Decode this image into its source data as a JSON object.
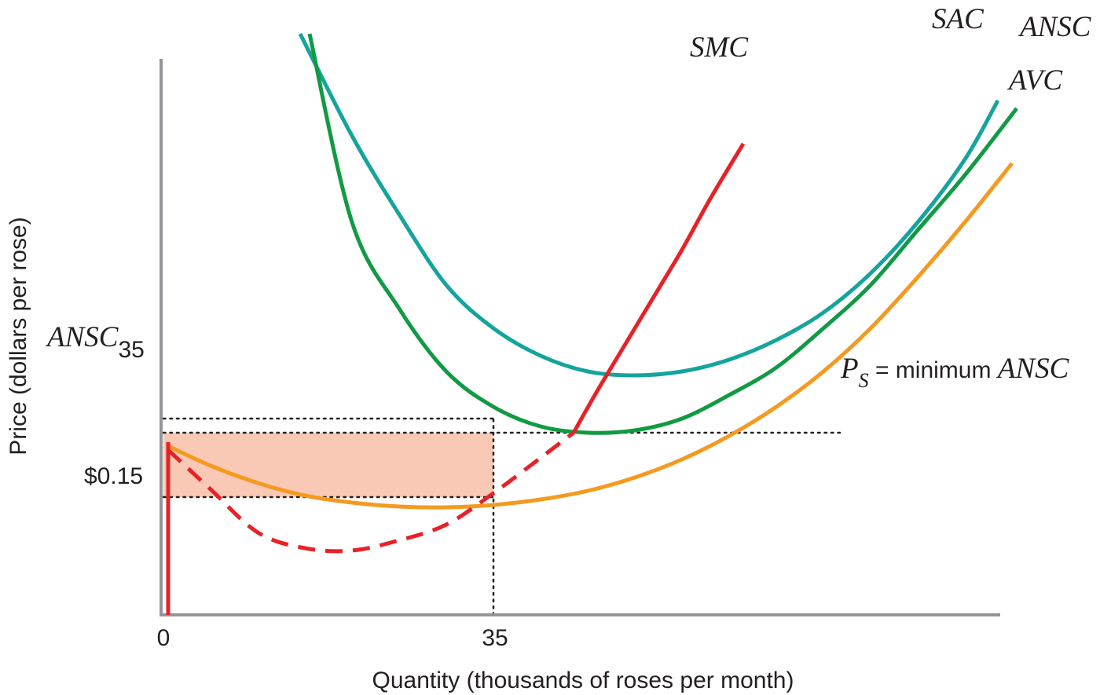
{
  "chart_data": {
    "type": "line",
    "title": "",
    "xlabel": "Quantity (thousands of roses per month)",
    "ylabel": "Price (dollars per rose)",
    "x_ticks": [
      {
        "value": 0,
        "label": "0"
      },
      {
        "value": 35,
        "label": "35"
      }
    ],
    "y_ticks": [
      {
        "value": 0.15,
        "label": "$0.15"
      },
      {
        "value": 0.25,
        "label_main": "ANSC",
        "label_sub": "35"
      }
    ],
    "grid": false,
    "legend": "none",
    "series": [
      {
        "name": "SAC",
        "color": "#14a49c",
        "style": "solid",
        "x": [
          14.5,
          20,
          25,
          30,
          35,
          40,
          45,
          50,
          55,
          60,
          65,
          70,
          75,
          80,
          85,
          88.5
        ],
        "y": [
          0.74,
          0.61,
          0.51,
          0.42,
          0.365,
          0.33,
          0.31,
          0.305,
          0.31,
          0.325,
          0.35,
          0.385,
          0.435,
          0.5,
          0.58,
          0.655
        ]
      },
      {
        "name": "ANSC",
        "color": "#119a44",
        "style": "solid",
        "x": [
          15.5,
          20,
          25,
          30,
          35,
          40,
          45,
          50,
          55,
          60,
          65,
          70,
          75,
          80,
          85,
          90.5
        ],
        "y": [
          0.74,
          0.5,
          0.39,
          0.31,
          0.265,
          0.24,
          0.232,
          0.235,
          0.25,
          0.28,
          0.315,
          0.365,
          0.42,
          0.49,
          0.56,
          0.645
        ]
      },
      {
        "name": "AVC",
        "color": "#f5991f",
        "style": "solid",
        "x": [
          0.5,
          5,
          10,
          15,
          20,
          25,
          30,
          35,
          40,
          45,
          50,
          55,
          60,
          65,
          70,
          75,
          80,
          85,
          90
        ],
        "y": [
          0.215,
          0.19,
          0.168,
          0.152,
          0.143,
          0.138,
          0.137,
          0.14,
          0.147,
          0.158,
          0.175,
          0.198,
          0.228,
          0.265,
          0.31,
          0.365,
          0.43,
          0.5,
          0.575
        ]
      },
      {
        "name": "SMC",
        "color": "#e82127",
        "style": "solid",
        "x": [
          43.5,
          46,
          49,
          52,
          55,
          58,
          61.5
        ],
        "y": [
          0.232,
          0.285,
          0.345,
          0.405,
          0.465,
          0.53,
          0.6
        ]
      },
      {
        "name": "",
        "color": "#e82127",
        "style": "dashed",
        "x": [
          0.5,
          5,
          10,
          15,
          20,
          25,
          30,
          35,
          40,
          43.5
        ],
        "y": [
          0.21,
          0.16,
          0.105,
          0.085,
          0.082,
          0.095,
          0.115,
          0.155,
          0.2,
          0.232
        ]
      },
      {
        "name": "",
        "color": "#e82127",
        "style": "solid",
        "x": [
          0.5,
          0.5
        ],
        "y": [
          0.0,
          0.22
        ]
      }
    ],
    "shaded_region": {
      "x": [
        0,
        35
      ],
      "y": [
        0.15,
        0.232
      ],
      "color": "#f9c9b5"
    },
    "reference_lines": [
      {
        "type": "horizontal",
        "y": 0.25,
        "x": [
          0,
          35
        ],
        "style": "dotted"
      },
      {
        "type": "horizontal",
        "y": 0.15,
        "x": [
          0,
          35
        ],
        "style": "dotted"
      },
      {
        "type": "horizontal",
        "y": 0.232,
        "x": [
          0,
          72
        ],
        "style": "dotted"
      },
      {
        "type": "vertical",
        "x": 35,
        "y": [
          0,
          0.25
        ],
        "style": "dotted"
      }
    ],
    "annotation": {
      "main": "P",
      "sub": "S",
      "text": " = minimum ",
      "tail": "ANSC"
    }
  }
}
